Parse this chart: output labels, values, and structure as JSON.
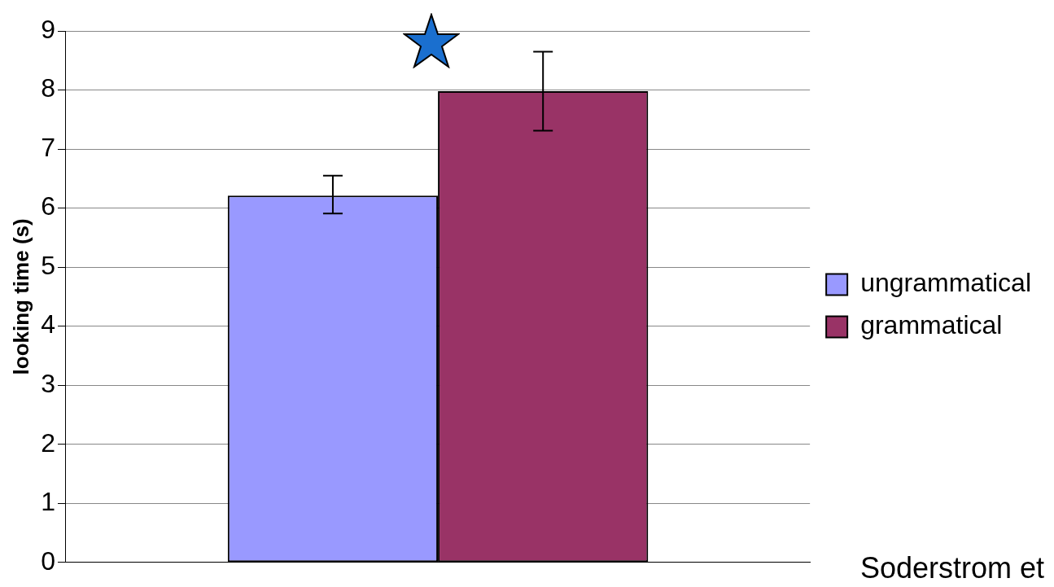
{
  "chart_data": {
    "type": "bar",
    "categories": [
      null
    ],
    "series": [
      {
        "name": "ungrammatical",
        "color": "#9999ff",
        "values": [
          6.21
        ],
        "errors": [
          [
            5.91,
            6.55
          ]
        ]
      },
      {
        "name": "grammatical",
        "color": "#993366",
        "values": [
          7.98
        ],
        "errors": [
          [
            7.31,
            8.65
          ]
        ]
      }
    ],
    "ylabel": "looking time (s)",
    "ylim": [
      0,
      9
    ],
    "yticks": [
      0,
      1,
      2,
      3,
      4,
      5,
      6,
      7,
      8,
      9
    ],
    "grid": "y",
    "legend": "right",
    "annotations": [
      "Soderstrom et"
    ]
  }
}
